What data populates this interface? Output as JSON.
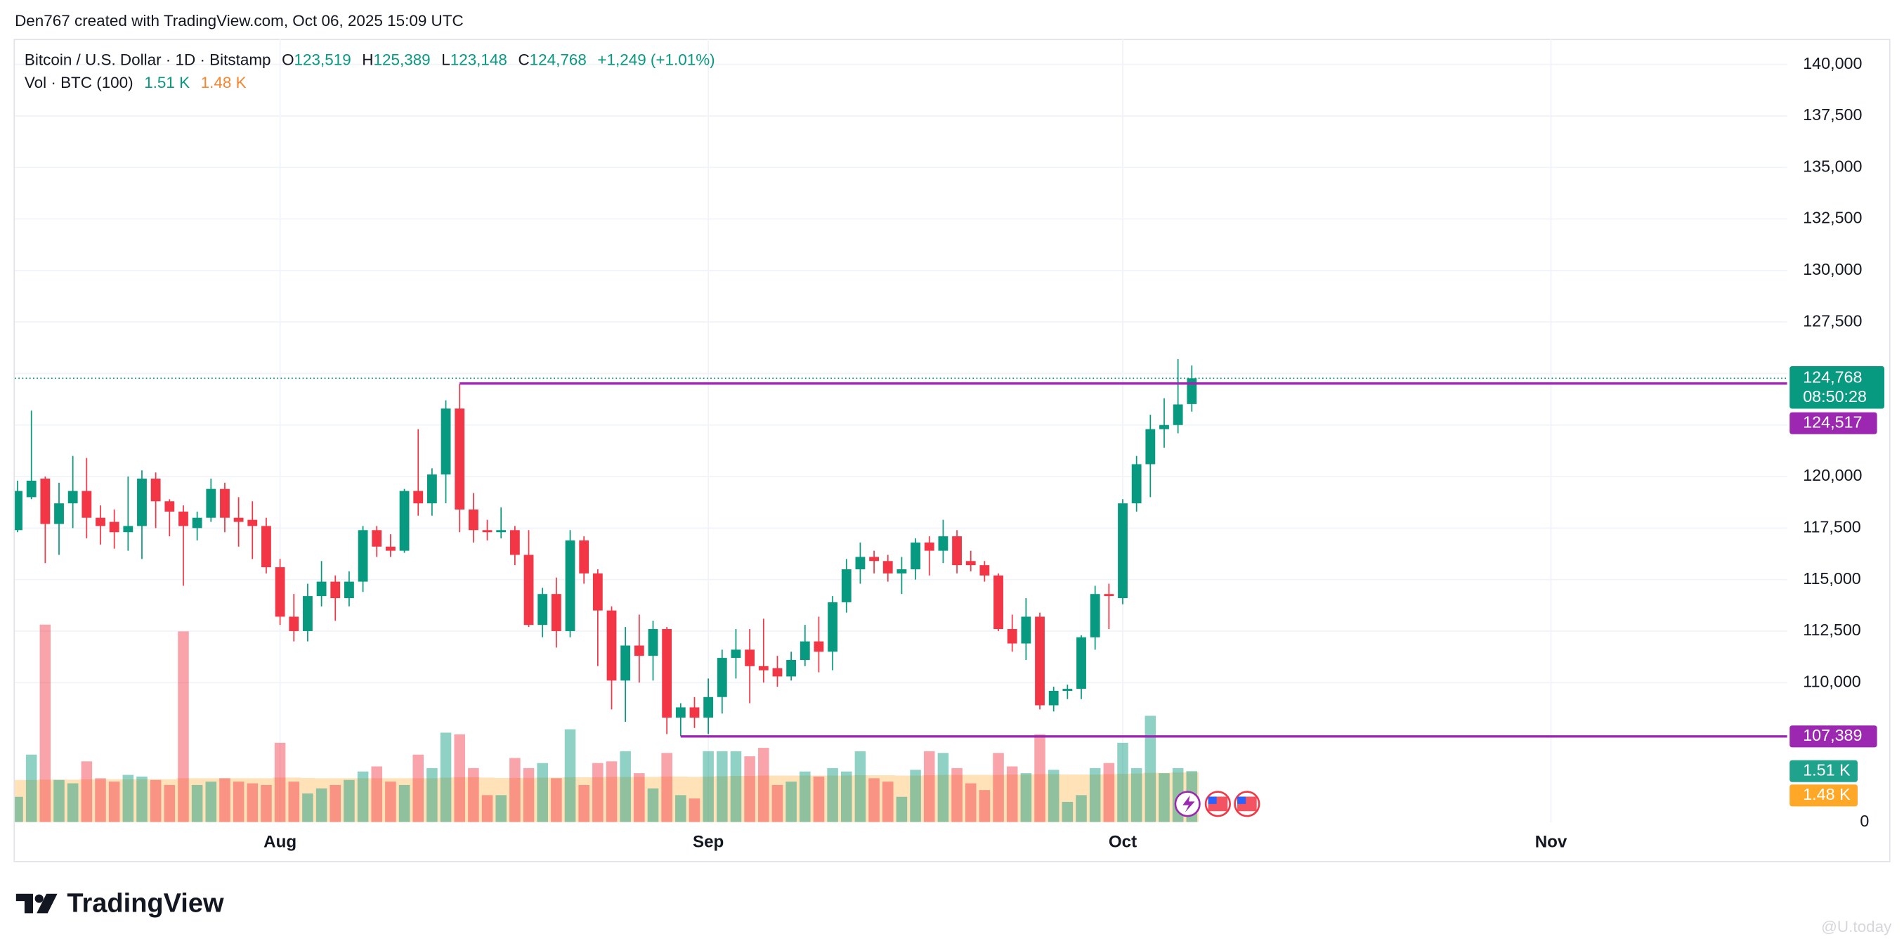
{
  "header": {
    "attribution": "Den767 created with TradingView.com, Oct 06, 2025 15:09 UTC"
  },
  "chart_data": {
    "type": "candlestick",
    "legend": {
      "symbol": "Bitcoin / U.S. Dollar · 1D · Bitstamp",
      "fields": [
        {
          "key": "O",
          "text": "123,519"
        },
        {
          "key": "H",
          "text": "125,389"
        },
        {
          "key": "L",
          "text": "123,148"
        },
        {
          "key": "C",
          "text": "124,768"
        }
      ],
      "change": "+1,249 (+1.01%)"
    },
    "open": [
      117400,
      119000,
      119900,
      117700,
      118700,
      119300,
      118000,
      117800,
      117300,
      117600,
      119900,
      118800,
      118300,
      117500,
      118000,
      119400,
      118000,
      117900,
      117600,
      115600,
      113200,
      112500,
      114200,
      114900,
      114100,
      114900,
      117400,
      116600,
      116400,
      119300,
      118700,
      120100,
      123300,
      118400,
      117400,
      117300,
      117400,
      116200,
      112800,
      114300,
      112500,
      116900,
      115300,
      113500,
      110100,
      111800,
      111300,
      112600,
      108300,
      108800,
      108300,
      109300,
      111200,
      111600,
      110800,
      110700,
      110300,
      111100,
      112000,
      111500,
      113900,
      115500,
      116100,
      115900,
      115300,
      115500,
      116800,
      116400,
      117100,
      115900,
      115700,
      115200,
      112600,
      111900,
      113200,
      108900,
      109600,
      109700,
      112200,
      114300,
      114100,
      118700,
      120600,
      122300,
      122500,
      123519
    ],
    "high": [
      119800,
      123200,
      120000,
      119700,
      121000,
      120900,
      118600,
      118400,
      120000,
      120300,
      120200,
      118900,
      118600,
      118300,
      119900,
      119700,
      119000,
      118800,
      118000,
      116000,
      114300,
      114800,
      115900,
      115200,
      115400,
      117600,
      117600,
      117200,
      119400,
      122300,
      120400,
      123700,
      124500,
      119200,
      117900,
      118500,
      117600,
      117400,
      114600,
      115100,
      117400,
      117100,
      115500,
      113700,
      112700,
      113300,
      113000,
      112700,
      109000,
      109300,
      110200,
      111600,
      112600,
      112600,
      113100,
      111300,
      111500,
      112800,
      113200,
      114200,
      116000,
      116800,
      116400,
      116200,
      116100,
      117000,
      117100,
      117900,
      117400,
      116400,
      115900,
      115300,
      113300,
      114100,
      113400,
      109800,
      109900,
      112300,
      114700,
      114800,
      118900,
      121000,
      123000,
      123800,
      125700,
      125389
    ],
    "low": [
      117300,
      118900,
      115800,
      116200,
      117500,
      117000,
      116700,
      116500,
      116400,
      116000,
      117500,
      117100,
      114700,
      116900,
      117800,
      117300,
      116600,
      116000,
      115300,
      112800,
      112000,
      112000,
      113700,
      113000,
      113700,
      114400,
      116100,
      116100,
      116300,
      118100,
      118100,
      118700,
      117300,
      116800,
      116900,
      117000,
      115700,
      112700,
      112200,
      111700,
      112200,
      114800,
      110800,
      108700,
      108100,
      110000,
      110100,
      107500,
      107400,
      107800,
      107500,
      108500,
      110200,
      109000,
      110000,
      109800,
      110100,
      110800,
      110500,
      110600,
      113400,
      114800,
      115300,
      114900,
      114300,
      115000,
      115200,
      115800,
      115300,
      115400,
      114900,
      112500,
      111500,
      111100,
      108700,
      108600,
      109200,
      109200,
      111600,
      112600,
      113800,
      118300,
      119000,
      121400,
      122100,
      123148
    ],
    "close": [
      119300,
      119800,
      117700,
      118700,
      119300,
      118000,
      117600,
      117300,
      117600,
      119900,
      118800,
      118300,
      117600,
      118000,
      119400,
      118000,
      117800,
      117600,
      115600,
      113200,
      112500,
      114200,
      114900,
      114100,
      114900,
      117400,
      116600,
      116400,
      119300,
      118700,
      120100,
      123300,
      118400,
      117400,
      117300,
      117400,
      116200,
      112800,
      114300,
      112500,
      116900,
      115300,
      113500,
      110100,
      111800,
      111300,
      112600,
      108300,
      108800,
      108300,
      109300,
      111200,
      111600,
      110800,
      110600,
      110300,
      111100,
      112000,
      111500,
      113900,
      115500,
      116100,
      115900,
      115300,
      115500,
      116800,
      116400,
      117100,
      115700,
      115700,
      115200,
      112600,
      111900,
      113200,
      108900,
      109600,
      109700,
      112200,
      114300,
      114200,
      118700,
      120600,
      122300,
      122500,
      123500,
      124768
    ],
    "up_color": "#089981",
    "down_color": "#f23645",
    "xlim": [
      -0.2,
      128.1
    ],
    "xticks": [
      {
        "value": 19,
        "label": "Aug"
      },
      {
        "value": 50,
        "label": "Sep"
      },
      {
        "value": 80,
        "label": "Oct"
      },
      {
        "value": 111,
        "label": "Nov"
      }
    ],
    "ylim": [
      103230,
      141240
    ],
    "yticks": [
      {
        "value": 110000,
        "label": "110,000"
      },
      {
        "value": 112500,
        "label": "112,500"
      },
      {
        "value": 115000,
        "label": "115,000"
      },
      {
        "value": 117500,
        "label": "117,500"
      },
      {
        "value": 120000,
        "label": "120,000"
      },
      {
        "value": 122500,
        "label": "122,500"
      },
      {
        "value": 125000,
        "label": "125,000"
      },
      {
        "value": 127500,
        "label": "127,500"
      },
      {
        "value": 130000,
        "label": "130,000"
      },
      {
        "value": 132500,
        "label": "132,500"
      },
      {
        "value": 135000,
        "label": "135,000"
      },
      {
        "value": 137500,
        "label": "137,500"
      },
      {
        "value": 140000,
        "label": "140,000"
      }
    ],
    "grid": true,
    "last_price": {
      "value": 124768,
      "label": "124,768",
      "countdown": "08:50:28"
    },
    "levels": [
      {
        "value": 124517,
        "label": "124,517",
        "start": 32,
        "color": "#9c27b0"
      },
      {
        "value": 107389,
        "label": "107,389",
        "start": 48,
        "color": "#9c27b0"
      }
    ],
    "volume": {
      "name": "Vol · BTC (100)",
      "values": [
        0.75,
        2.0,
        5.85,
        1.25,
        1.15,
        1.8,
        1.3,
        1.2,
        1.4,
        1.35,
        1.25,
        1.1,
        5.65,
        1.1,
        1.2,
        1.3,
        1.2,
        1.15,
        1.1,
        2.35,
        1.2,
        0.85,
        1.0,
        1.1,
        1.25,
        1.5,
        1.65,
        1.2,
        1.1,
        2.0,
        1.6,
        2.65,
        2.6,
        1.6,
        0.8,
        0.8,
        1.9,
        1.6,
        1.75,
        1.3,
        2.75,
        1.1,
        1.75,
        1.8,
        2.1,
        1.45,
        1.0,
        2.05,
        0.8,
        0.7,
        2.1,
        2.1,
        2.1,
        1.95,
        2.2,
        1.1,
        1.2,
        1.5,
        1.35,
        1.6,
        1.5,
        2.1,
        1.3,
        1.2,
        0.75,
        1.55,
        2.1,
        2.05,
        1.6,
        1.15,
        0.95,
        2.05,
        1.65,
        1.45,
        2.6,
        1.55,
        0.6,
        0.8,
        1.6,
        1.75,
        2.35,
        1.6,
        3.15,
        1.45,
        1.6,
        1.51
      ],
      "last_label": "1.51 K",
      "ylim": [
        0,
        23.2
      ],
      "axis_label": 0,
      "ma": {
        "values": [
          1.25,
          1.25,
          1.26,
          1.26,
          1.26,
          1.27,
          1.27,
          1.27,
          1.27,
          1.27,
          1.27,
          1.27,
          1.3,
          1.3,
          1.3,
          1.3,
          1.3,
          1.3,
          1.3,
          1.32,
          1.32,
          1.31,
          1.3,
          1.3,
          1.3,
          1.3,
          1.3,
          1.3,
          1.3,
          1.3,
          1.3,
          1.32,
          1.33,
          1.33,
          1.32,
          1.31,
          1.31,
          1.31,
          1.32,
          1.32,
          1.33,
          1.33,
          1.33,
          1.34,
          1.34,
          1.34,
          1.34,
          1.35,
          1.35,
          1.34,
          1.35,
          1.36,
          1.37,
          1.37,
          1.38,
          1.38,
          1.38,
          1.38,
          1.38,
          1.38,
          1.38,
          1.39,
          1.39,
          1.39,
          1.38,
          1.38,
          1.39,
          1.4,
          1.4,
          1.4,
          1.4,
          1.4,
          1.41,
          1.41,
          1.42,
          1.42,
          1.41,
          1.41,
          1.41,
          1.42,
          1.43,
          1.44,
          1.46,
          1.46,
          1.47,
          1.48
        ],
        "last_label": "1.48 K",
        "color": "#ff9800"
      }
    }
  },
  "footer": {
    "brand": "TradingView",
    "watermark": "@U.today"
  }
}
